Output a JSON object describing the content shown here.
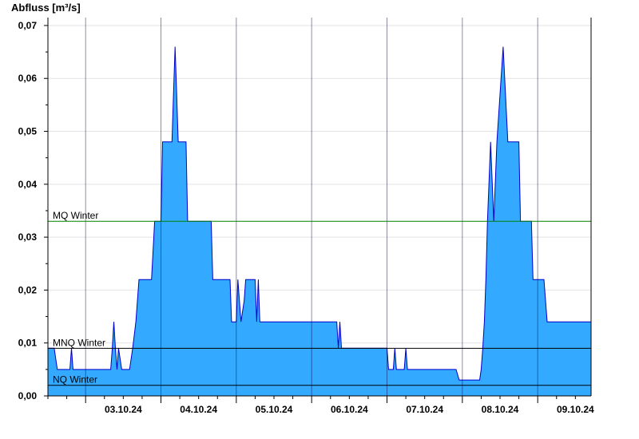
{
  "chart_data": {
    "type": "area",
    "ylabel": "Abfluss [m³/s]",
    "xlabel": "",
    "title": "",
    "ylim": [
      0,
      0.0715
    ],
    "xlim": [
      "2024-10-02T12:00",
      "2024-10-09T17:00"
    ],
    "y_ticks": [
      0.0,
      0.01,
      0.02,
      0.03,
      0.04,
      0.05,
      0.06,
      0.07
    ],
    "y_tick_labels": [
      "0,00",
      "0,01",
      "0,02",
      "0,03",
      "0,04",
      "0,05",
      "0,06",
      "0,07"
    ],
    "x_ticks": [
      "2024-10-03",
      "2024-10-04",
      "2024-10-05",
      "2024-10-06",
      "2024-10-07",
      "2024-10-08",
      "2024-10-09"
    ],
    "x_tick_labels": [
      "03.10.24",
      "04.10.24",
      "05.10.24",
      "06.10.24",
      "07.10.24",
      "08.10.24",
      "09.10.24"
    ],
    "grid": true,
    "fill_color": "#33aaff",
    "line_color": "#0000cc",
    "series": [
      {
        "values": [
          [
            "2024-10-02T12:00",
            0.009
          ],
          [
            "2024-10-02T14:00",
            0.009
          ],
          [
            "2024-10-02T14:30",
            0.007
          ],
          [
            "2024-10-02T15:00",
            0.005
          ],
          [
            "2024-10-02T19:00",
            0.005
          ],
          [
            "2024-10-02T19:30",
            0.009
          ],
          [
            "2024-10-02T20:00",
            0.005
          ],
          [
            "2024-10-03T08:00",
            0.005
          ],
          [
            "2024-10-03T08:30",
            0.009
          ],
          [
            "2024-10-03T09:00",
            0.014
          ],
          [
            "2024-10-03T09:30",
            0.009
          ],
          [
            "2024-10-03T10:00",
            0.005
          ],
          [
            "2024-10-03T10:30",
            0.009
          ],
          [
            "2024-10-03T11:30",
            0.005
          ],
          [
            "2024-10-03T14:00",
            0.005
          ],
          [
            "2024-10-03T15:00",
            0.009
          ],
          [
            "2024-10-03T16:00",
            0.014
          ],
          [
            "2024-10-03T17:00",
            0.022
          ],
          [
            "2024-10-03T21:00",
            0.022
          ],
          [
            "2024-10-03T22:00",
            0.033
          ],
          [
            "2024-10-04T00:00",
            0.033
          ],
          [
            "2024-10-04T00:30",
            0.048
          ],
          [
            "2024-10-04T03:30",
            0.048
          ],
          [
            "2024-10-04T04:00",
            0.057
          ],
          [
            "2024-10-04T04:30",
            0.066
          ],
          [
            "2024-10-04T05:00",
            0.057
          ],
          [
            "2024-10-04T05:30",
            0.048
          ],
          [
            "2024-10-04T08:00",
            0.048
          ],
          [
            "2024-10-04T08:30",
            0.033
          ],
          [
            "2024-10-04T16:00",
            0.033
          ],
          [
            "2024-10-04T16:30",
            0.022
          ],
          [
            "2024-10-04T22:00",
            0.022
          ],
          [
            "2024-10-04T22:30",
            0.014
          ],
          [
            "2024-10-05T00:00",
            0.014
          ],
          [
            "2024-10-05T00:30",
            0.022
          ],
          [
            "2024-10-05T01:30",
            0.014
          ],
          [
            "2024-10-05T02:30",
            0.018
          ],
          [
            "2024-10-05T03:00",
            0.022
          ],
          [
            "2024-10-05T06:00",
            0.022
          ],
          [
            "2024-10-05T06:30",
            0.014
          ],
          [
            "2024-10-05T07:00",
            0.022
          ],
          [
            "2024-10-05T07:30",
            0.014
          ],
          [
            "2024-10-06T08:00",
            0.014
          ],
          [
            "2024-10-06T08:30",
            0.009
          ],
          [
            "2024-10-06T09:00",
            0.014
          ],
          [
            "2024-10-06T09:30",
            0.009
          ],
          [
            "2024-10-07T00:00",
            0.009
          ],
          [
            "2024-10-07T00:30",
            0.005
          ],
          [
            "2024-10-07T02:00",
            0.005
          ],
          [
            "2024-10-07T02:30",
            0.009
          ],
          [
            "2024-10-07T03:00",
            0.005
          ],
          [
            "2024-10-07T05:30",
            0.005
          ],
          [
            "2024-10-07T06:00",
            0.009
          ],
          [
            "2024-10-07T06:30",
            0.005
          ],
          [
            "2024-10-07T22:00",
            0.005
          ],
          [
            "2024-10-07T23:00",
            0.003
          ],
          [
            "2024-10-08T05:30",
            0.003
          ],
          [
            "2024-10-08T06:00",
            0.005
          ],
          [
            "2024-10-08T06:30",
            0.009
          ],
          [
            "2024-10-08T07:00",
            0.014
          ],
          [
            "2024-10-08T07:30",
            0.022
          ],
          [
            "2024-10-08T08:00",
            0.033
          ],
          [
            "2024-10-08T09:00",
            0.048
          ],
          [
            "2024-10-08T10:00",
            0.033
          ],
          [
            "2024-10-08T11:00",
            0.048
          ],
          [
            "2024-10-08T13:00",
            0.066
          ],
          [
            "2024-10-08T14:30",
            0.048
          ],
          [
            "2024-10-08T18:00",
            0.048
          ],
          [
            "2024-10-08T18:30",
            0.033
          ],
          [
            "2024-10-08T22:00",
            0.033
          ],
          [
            "2024-10-08T22:30",
            0.022
          ],
          [
            "2024-10-09T02:00",
            0.022
          ],
          [
            "2024-10-09T03:00",
            0.014
          ],
          [
            "2024-10-09T17:00",
            0.014
          ]
        ]
      }
    ],
    "reference_lines": [
      {
        "label": "MQ Winter",
        "value": 0.033,
        "color": "#008000"
      },
      {
        "label": "MNQ Winter",
        "value": 0.009,
        "color": "#000000"
      },
      {
        "label": "NQ Winter",
        "value": 0.002,
        "color": "#000000"
      }
    ]
  }
}
